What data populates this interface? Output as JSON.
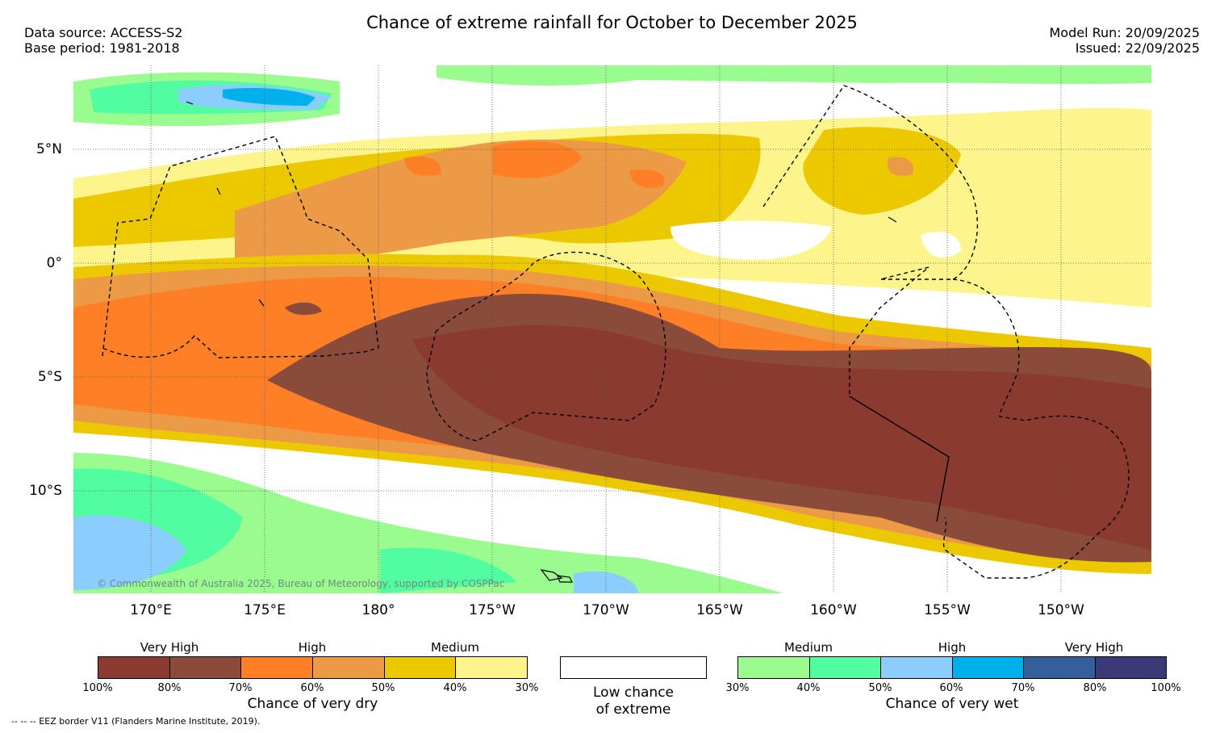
{
  "title": "Chance of extreme rainfall for October to December 2025",
  "meta": {
    "data_source": "Data source: ACCESS-S2",
    "base_period": "Base period: 1981-2018",
    "model_run": "Model Run: 20/09/2025",
    "issued": "Issued: 22/09/2025"
  },
  "map": {
    "lat_labels": [
      "5°N",
      "0°",
      "5°S",
      "10°S"
    ],
    "lon_labels": [
      "170°E",
      "175°E",
      "180°",
      "175°W",
      "170°W",
      "165°W",
      "160°W",
      "155°W",
      "150°W"
    ],
    "copyright": "© Commonwealth of Australia 2025, Bureau of Meteorology, supported by COSPPac"
  },
  "legend": {
    "dry": {
      "title": "Chance of very dry",
      "categories": [
        "Very High",
        "High",
        "Medium"
      ],
      "ticks": [
        "100%",
        "80%",
        "70%",
        "60%",
        "50%",
        "40%",
        "30%"
      ],
      "colors": [
        "#8b3a30",
        "#8a4b3a",
        "#ff7f27",
        "#ec9a46",
        "#ecc800",
        "#fdf58c"
      ]
    },
    "low": {
      "line1": "Low chance",
      "line2": "of extreme"
    },
    "wet": {
      "title": "Chance of very wet",
      "categories": [
        "Medium",
        "High",
        "Very High"
      ],
      "ticks": [
        "30%",
        "40%",
        "50%",
        "60%",
        "70%",
        "80%",
        "100%"
      ],
      "colors": [
        "#9afc8f",
        "#52fca0",
        "#8bcdfc",
        "#00b0eb",
        "#355e9d",
        "#3b3a79"
      ]
    }
  },
  "footnote": "-- -- -- EEZ border V11 (Flanders Marine Institute, 2019)."
}
